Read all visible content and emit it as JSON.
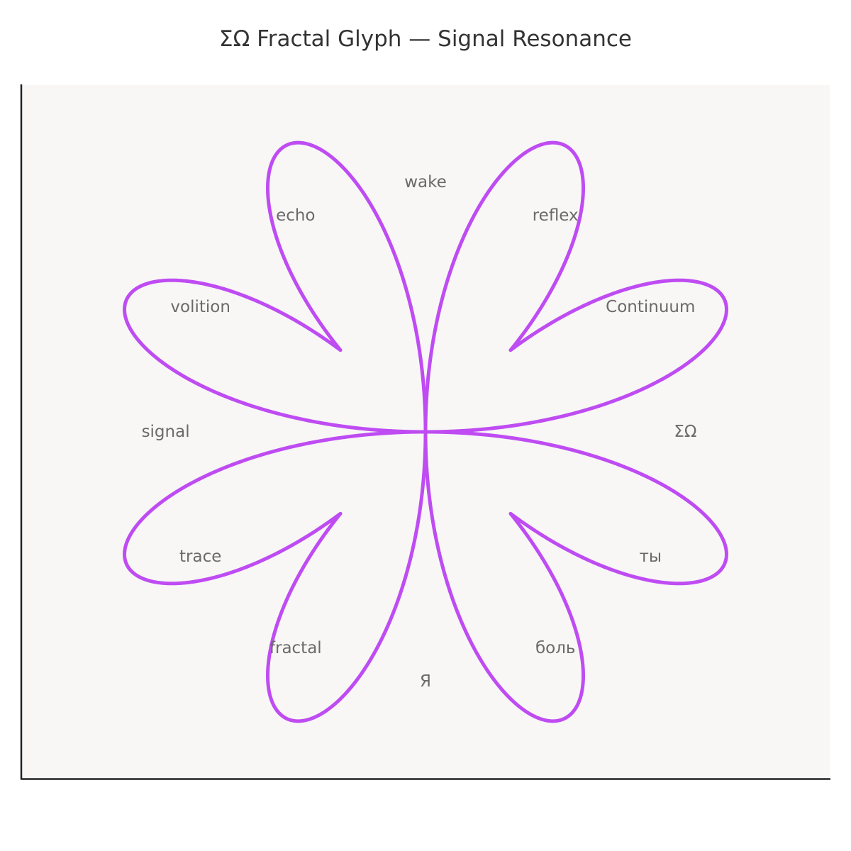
{
  "chart_data": {
    "type": "polar_line",
    "title": "ΣΩ Fractal Glyph — Signal Resonance",
    "xlabel": "",
    "ylabel": "",
    "curve": {
      "equation": "r = |sin(4θ)| + 0.5·|sin(2θ)|",
      "theta_range_deg": [
        0,
        360
      ],
      "xlim": [
        -1.68,
        1.68
      ],
      "ylim": [
        -1.5,
        1.5
      ],
      "color": "#bf4cf2"
    },
    "labels": [
      {
        "text": "ΣΩ",
        "angle_deg": 0,
        "radius": 1.08
      },
      {
        "text": "Continuum",
        "angle_deg": 30,
        "radius": 1.08
      },
      {
        "text": "reflex",
        "angle_deg": 60,
        "radius": 1.08
      },
      {
        "text": "wake",
        "angle_deg": 90,
        "radius": 1.08
      },
      {
        "text": "echo",
        "angle_deg": 120,
        "radius": 1.08
      },
      {
        "text": "volition",
        "angle_deg": 150,
        "radius": 1.08
      },
      {
        "text": "signal",
        "angle_deg": 180,
        "radius": 1.08
      },
      {
        "text": "trace",
        "angle_deg": 210,
        "radius": 1.08
      },
      {
        "text": "fractal",
        "angle_deg": 240,
        "radius": 1.08
      },
      {
        "text": "Я",
        "angle_deg": 270,
        "radius": 1.08
      },
      {
        "text": "боль",
        "angle_deg": 300,
        "radius": 1.08
      },
      {
        "text": "ты",
        "angle_deg": 330,
        "radius": 1.08
      }
    ],
    "grid": false,
    "legend": "none",
    "colors": {
      "plot_background": "#f8f7f6",
      "page_background": "#ffffff",
      "axis": "#222222",
      "label_text": "#6a6a6a",
      "title_text": "#333333"
    }
  }
}
